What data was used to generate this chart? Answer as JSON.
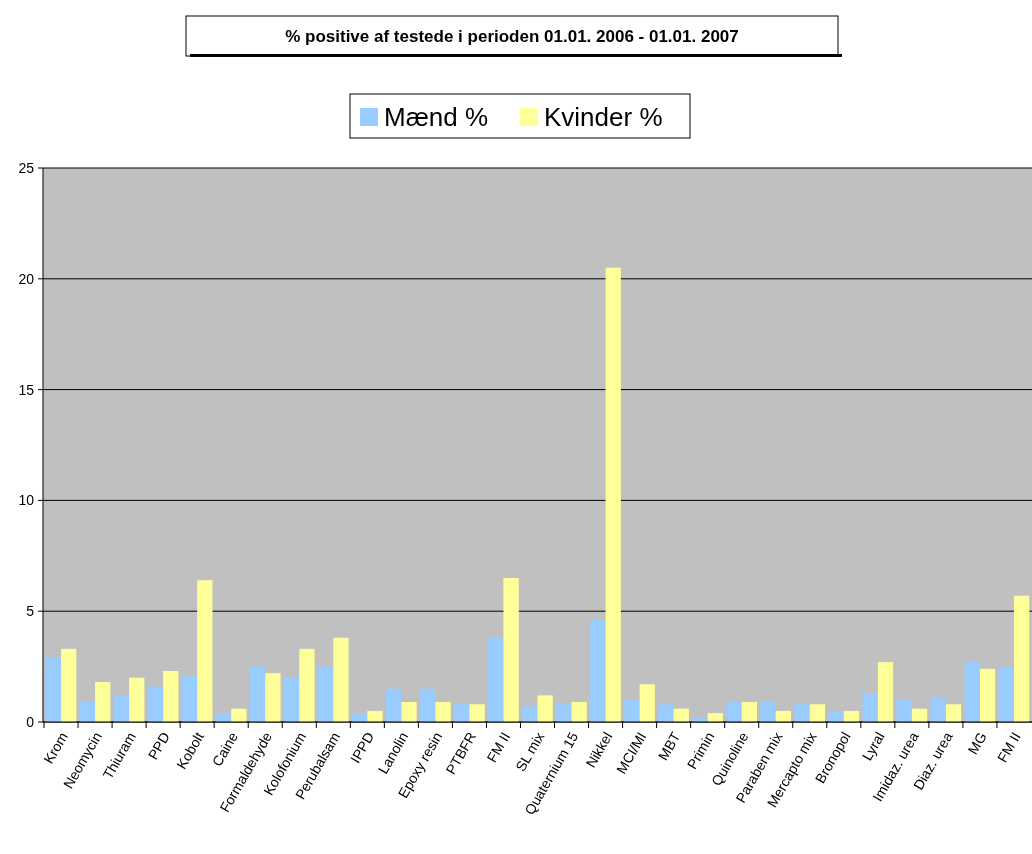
{
  "chart_data": {
    "type": "bar",
    "title": "% positive af testede i perioden 01.01. 2006 - 01.01. 2007",
    "categories": [
      "Krom",
      "Neomycin",
      "Thiuram",
      "PPD",
      "Kobolt",
      "Caine",
      "Formaldehyde",
      "Kolofonium",
      "Perubalsam",
      "IPPD",
      "Lanolin",
      "Epoxy resin",
      "PTBFR",
      "FM II",
      "SL mix",
      "Quaternium 15",
      "Nikkel",
      "MCI/MI",
      "MBT",
      "Primin",
      "Quinoline",
      "Paraben mix",
      "Mercapto mix",
      "Bronopol",
      "Lyral",
      "Imidaz.  urea",
      "Diaz. urea",
      "MG",
      "FM II"
    ],
    "series": [
      {
        "name": "Mænd %",
        "color": "#99ccff",
        "values": [
          2.9,
          0.9,
          1.2,
          1.6,
          2.1,
          0.4,
          2.5,
          2.0,
          2.5,
          0.4,
          1.5,
          1.5,
          0.8,
          3.8,
          0.7,
          0.8,
          4.6,
          1.0,
          0.8,
          0.2,
          0.9,
          0.9,
          0.8,
          0.5,
          1.3,
          1.0,
          1.1,
          2.7,
          2.5
        ]
      },
      {
        "name": "Kvinder %",
        "color": "#ffff99",
        "values": [
          3.3,
          1.8,
          2.0,
          2.3,
          6.4,
          0.6,
          2.2,
          3.3,
          3.8,
          0.5,
          0.9,
          0.9,
          0.8,
          6.5,
          1.2,
          0.9,
          20.5,
          1.7,
          0.6,
          0.4,
          0.9,
          0.5,
          0.8,
          0.5,
          2.7,
          0.6,
          0.8,
          2.4,
          5.7
        ]
      }
    ],
    "ylim": [
      0,
      25
    ],
    "yticks": [
      0,
      5,
      10,
      15,
      20,
      25
    ],
    "grid": "y",
    "legend": "top"
  }
}
